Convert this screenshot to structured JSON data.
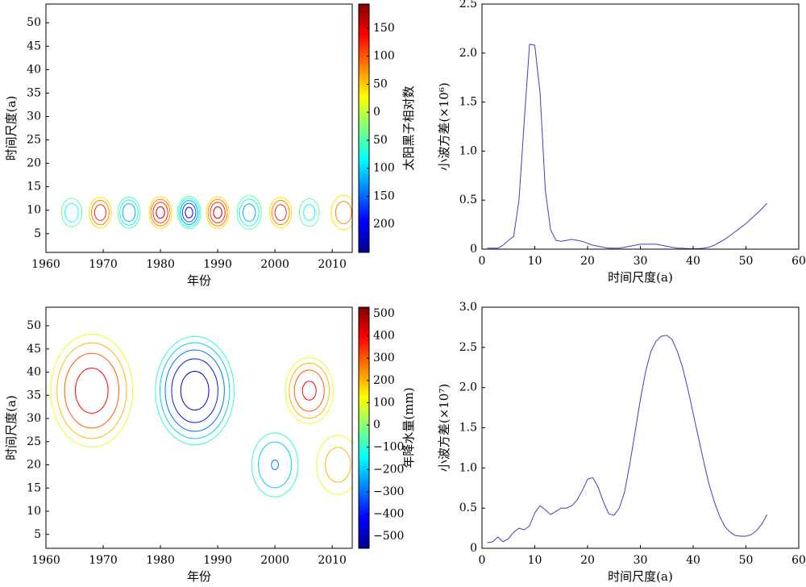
{
  "chart_data": [
    {
      "type": "contour",
      "xlabel": "年份",
      "ylabel": "时间尺度(a)",
      "xlim": [
        1960,
        2013.5
      ],
      "ylim": [
        1,
        54
      ],
      "xticks": [
        1960,
        1970,
        1980,
        1990,
        2000,
        2010
      ],
      "yticks": [
        5,
        10,
        15,
        20,
        25,
        30,
        35,
        40,
        45,
        50
      ],
      "colorbar": {
        "label": "太阳黑子相对数",
        "lim": [
          -250,
          193
        ],
        "ticks": [
          150,
          100,
          50,
          0,
          {
            "value": -50,
            "label": "50"
          },
          {
            "value": -100,
            "label": "100"
          },
          {
            "value": -150,
            "label": "150"
          },
          {
            "value": -200,
            "label": "200"
          }
        ]
      },
      "x": [
        1964.5,
        1969.5,
        1974.5,
        1980,
        1985,
        1990,
        1995.5,
        2001,
        2006,
        2012
      ],
      "y": [
        9.5,
        9.5,
        9.5,
        9.5,
        9.5,
        9.5,
        9.5,
        9.5,
        9.5,
        9.5
      ],
      "values": [
        -110,
        150,
        -160,
        180,
        -220,
        180,
        -150,
        150,
        -100,
        110
      ]
    },
    {
      "type": "line",
      "xlabel": "时间尺度(a)",
      "ylabel": "小波方差(×10⁶)",
      "color": "#4040c0",
      "xlim": [
        0,
        60
      ],
      "ylim": [
        0,
        2.5
      ],
      "xticks": [
        0,
        10,
        20,
        30,
        40,
        50,
        60
      ],
      "yticks": [
        0,
        0.5,
        {
          "value": 1,
          "label": "1.0"
        },
        1.5,
        {
          "value": 2,
          "label": "2.0"
        },
        2.5
      ],
      "x": [
        1,
        2,
        3,
        4,
        5,
        6,
        7,
        8,
        9,
        10,
        11,
        12,
        13,
        14,
        15,
        16,
        17,
        18,
        19,
        20,
        21,
        22,
        23,
        24,
        25,
        26,
        27,
        28,
        29,
        30,
        31,
        32,
        33,
        34,
        35,
        36,
        37,
        38,
        39,
        40,
        41,
        42,
        43,
        44,
        45,
        46,
        47,
        48,
        49,
        50,
        51,
        52,
        53,
        54
      ],
      "values": [
        0.01,
        0.01,
        0.01,
        0.04,
        0.09,
        0.13,
        0.5,
        1.3,
        2.09,
        2.08,
        1.6,
        0.6,
        0.2,
        0.09,
        0.08,
        0.09,
        0.1,
        0.09,
        0.08,
        0.06,
        0.04,
        0.03,
        0.02,
        0.01,
        0.01,
        0.01,
        0.02,
        0.03,
        0.04,
        0.05,
        0.05,
        0.05,
        0.05,
        0.04,
        0.03,
        0.02,
        0.01,
        0.01,
        0.005,
        0.005,
        0.005,
        0.01,
        0.02,
        0.04,
        0.07,
        0.1,
        0.14,
        0.18,
        0.22,
        0.26,
        0.31,
        0.36,
        0.41,
        0.47
      ]
    },
    {
      "type": "contour",
      "xlabel": "年份",
      "ylabel": "时间尺度(a)",
      "xlim": [
        1960,
        2013.5
      ],
      "ylim": [
        2,
        54
      ],
      "xticks": [
        1960,
        1970,
        1980,
        1990,
        2000,
        2010
      ],
      "yticks": [
        5,
        10,
        15,
        20,
        25,
        30,
        35,
        40,
        45,
        50
      ],
      "colorbar": {
        "label": "年降水量(mm)",
        "lim": [
          -554,
          529
        ],
        "ticks": [
          500,
          400,
          300,
          200,
          100,
          0,
          {
            "value": -100,
            "label": "−100"
          },
          {
            "value": -200,
            "label": "−200"
          },
          {
            "value": -300,
            "label": "−300"
          },
          {
            "value": -400,
            "label": "−400"
          },
          {
            "value": -500,
            "label": "−500"
          }
        ]
      },
      "x": [
        1968,
        1986,
        2006,
        2000,
        2011
      ],
      "y": [
        36,
        36,
        36,
        20,
        20
      ],
      "values": [
        450,
        -550,
        420,
        -300,
        250
      ]
    },
    {
      "type": "line",
      "xlabel": "时间尺度(a)",
      "ylabel": "小波方差(×10⁷)",
      "color": "#4040c0",
      "xlim": [
        0,
        60
      ],
      "ylim": [
        0,
        3
      ],
      "xticks": [
        0,
        10,
        20,
        30,
        40,
        50,
        60
      ],
      "yticks": [
        0,
        0.5,
        {
          "value": 1,
          "label": "1.0"
        },
        1.5,
        {
          "value": 2,
          "label": "2.0"
        },
        2.5,
        {
          "value": 3,
          "label": "3.0"
        }
      ],
      "x": [
        1,
        2,
        3,
        4,
        5,
        6,
        7,
        8,
        9,
        10,
        11,
        12,
        13,
        14,
        15,
        16,
        17,
        18,
        19,
        20,
        21,
        22,
        23,
        24,
        25,
        26,
        27,
        28,
        29,
        30,
        31,
        32,
        33,
        34,
        35,
        36,
        37,
        38,
        39,
        40,
        41,
        42,
        43,
        44,
        45,
        46,
        47,
        48,
        49,
        50,
        51,
        52,
        53,
        54
      ],
      "values": [
        0.07,
        0.08,
        0.14,
        0.08,
        0.12,
        0.2,
        0.25,
        0.23,
        0.28,
        0.44,
        0.53,
        0.48,
        0.42,
        0.46,
        0.5,
        0.5,
        0.53,
        0.6,
        0.72,
        0.86,
        0.88,
        0.76,
        0.58,
        0.43,
        0.41,
        0.5,
        0.7,
        1.05,
        1.45,
        1.85,
        2.2,
        2.45,
        2.58,
        2.64,
        2.65,
        2.6,
        2.45,
        2.25,
        1.98,
        1.68,
        1.38,
        1.08,
        0.8,
        0.58,
        0.4,
        0.27,
        0.2,
        0.16,
        0.15,
        0.15,
        0.17,
        0.22,
        0.3,
        0.42
      ]
    }
  ]
}
